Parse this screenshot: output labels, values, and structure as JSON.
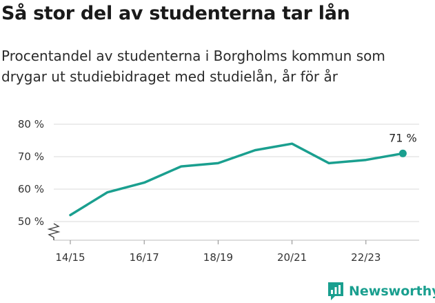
{
  "header": {
    "title": "Så stor del av studenterna tar lån",
    "subtitle": "Procentandel av studenterna i Borgholms kommun som drygar ut studiebidraget med studielån, år för år"
  },
  "brand": {
    "name": "Newsworthy",
    "icon": "newsworthy-logo-icon",
    "color": "#1a9f8f"
  },
  "chart_data": {
    "type": "line",
    "x": [
      "14/15",
      "15/16",
      "16/17",
      "17/18",
      "18/19",
      "19/20",
      "20/21",
      "21/22",
      "22/23",
      "23/24"
    ],
    "series": [
      {
        "values": [
          52,
          59,
          62,
          67,
          68,
          72,
          74,
          68,
          69,
          71
        ],
        "color": "#1a9f8f"
      }
    ],
    "x_tick_labels": [
      "14/15",
      "16/17",
      "18/19",
      "20/21",
      "22/23"
    ],
    "y_ticks": [
      50,
      60,
      70,
      80
    ],
    "y_tick_labels": [
      "50 %",
      "60 %",
      "70 %",
      "80 %"
    ],
    "ylim": [
      48,
      82
    ],
    "y_axis_break": true,
    "grid": true,
    "annotation": {
      "index": 9,
      "label": "71 %"
    }
  }
}
